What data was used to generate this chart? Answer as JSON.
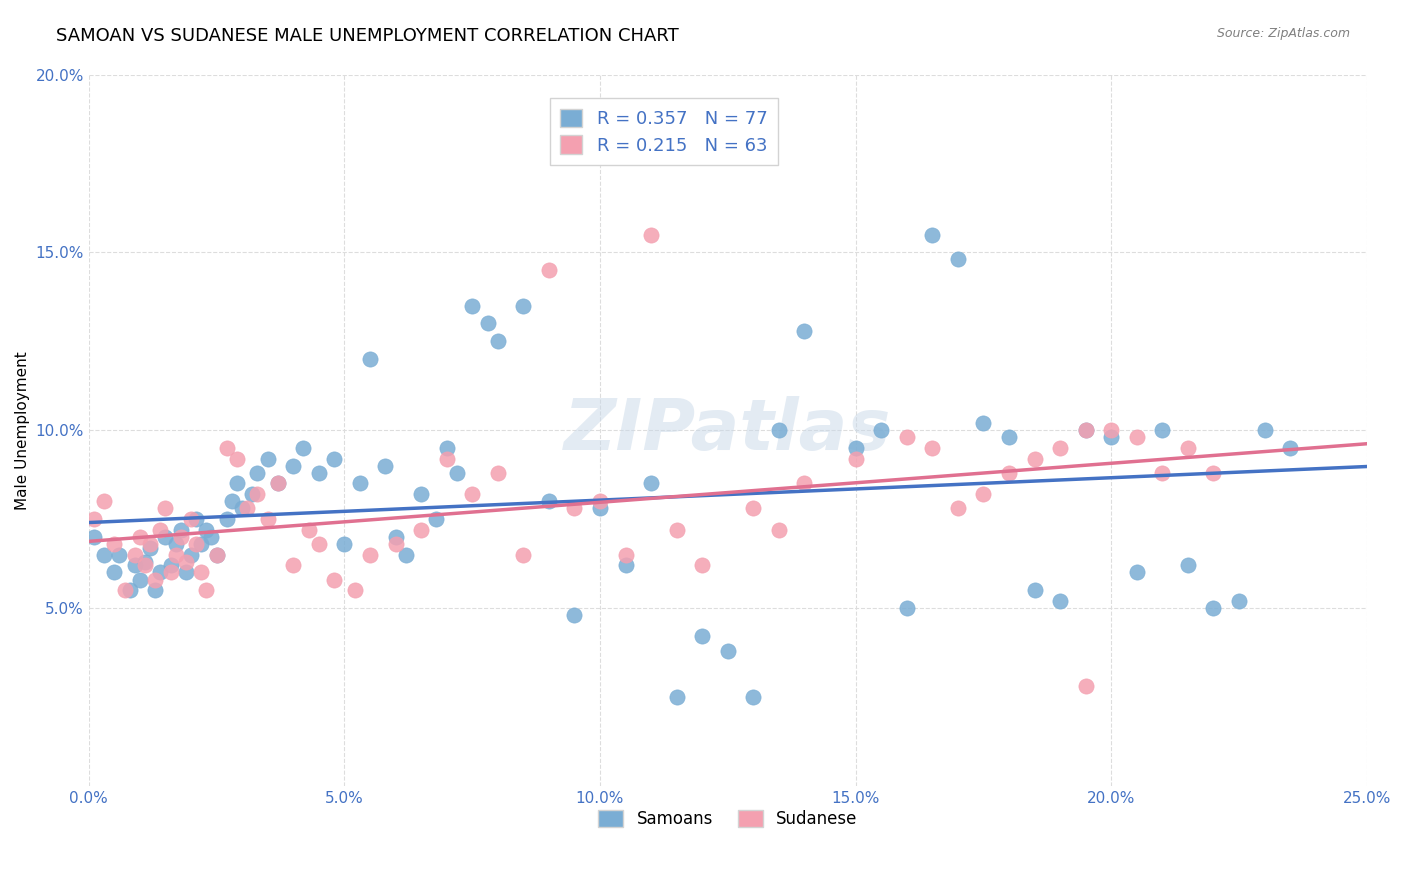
{
  "title": "SAMOAN VS SUDANESE MALE UNEMPLOYMENT CORRELATION CHART",
  "source": "Source: ZipAtlas.com",
  "xlabel": "",
  "ylabel": "Male Unemployment",
  "xlim": [
    0.0,
    0.25
  ],
  "ylim": [
    0.0,
    0.2
  ],
  "xticks": [
    0.0,
    0.05,
    0.1,
    0.15,
    0.2,
    0.25
  ],
  "xticklabels": [
    "0.0%",
    "5.0%",
    "10.0%",
    "15.0%",
    "20.0%",
    "25.0%"
  ],
  "yticks": [
    0.05,
    0.1,
    0.15,
    0.2
  ],
  "yticklabels": [
    "5.0%",
    "10.0%",
    "15.0%",
    "20.0%"
  ],
  "grid_color": "#dddddd",
  "background_color": "#ffffff",
  "title_fontsize": 13,
  "axis_label_fontsize": 11,
  "tick_fontsize": 11,
  "samoans_color": "#7aadd4",
  "sudanese_color": "#f4a0b0",
  "samoans_line_color": "#4472c4",
  "sudanese_line_color": "#e07090",
  "legend_R_N_color": "#4472c4",
  "samoans_R": 0.357,
  "samoans_N": 77,
  "sudanese_R": 0.215,
  "sudanese_N": 63,
  "watermark": "ZIPatlas",
  "samoans_x": [
    0.001,
    0.003,
    0.005,
    0.006,
    0.008,
    0.009,
    0.01,
    0.011,
    0.012,
    0.013,
    0.014,
    0.015,
    0.016,
    0.017,
    0.018,
    0.019,
    0.02,
    0.021,
    0.022,
    0.023,
    0.024,
    0.025,
    0.027,
    0.028,
    0.029,
    0.03,
    0.032,
    0.033,
    0.035,
    0.037,
    0.04,
    0.042,
    0.045,
    0.048,
    0.05,
    0.053,
    0.055,
    0.058,
    0.06,
    0.062,
    0.065,
    0.068,
    0.07,
    0.072,
    0.075,
    0.078,
    0.08,
    0.085,
    0.09,
    0.095,
    0.1,
    0.105,
    0.11,
    0.115,
    0.12,
    0.125,
    0.13,
    0.135,
    0.14,
    0.15,
    0.155,
    0.16,
    0.165,
    0.17,
    0.175,
    0.18,
    0.185,
    0.19,
    0.195,
    0.2,
    0.205,
    0.21,
    0.215,
    0.22,
    0.225,
    0.23,
    0.235
  ],
  "samoans_y": [
    0.07,
    0.065,
    0.06,
    0.065,
    0.055,
    0.062,
    0.058,
    0.063,
    0.067,
    0.055,
    0.06,
    0.07,
    0.062,
    0.068,
    0.072,
    0.06,
    0.065,
    0.075,
    0.068,
    0.072,
    0.07,
    0.065,
    0.075,
    0.08,
    0.085,
    0.078,
    0.082,
    0.088,
    0.092,
    0.085,
    0.09,
    0.095,
    0.088,
    0.092,
    0.068,
    0.085,
    0.12,
    0.09,
    0.07,
    0.065,
    0.082,
    0.075,
    0.095,
    0.088,
    0.135,
    0.13,
    0.125,
    0.135,
    0.08,
    0.048,
    0.078,
    0.062,
    0.085,
    0.025,
    0.042,
    0.038,
    0.025,
    0.1,
    0.128,
    0.095,
    0.1,
    0.05,
    0.155,
    0.148,
    0.102,
    0.098,
    0.055,
    0.052,
    0.1,
    0.098,
    0.06,
    0.1,
    0.062,
    0.05,
    0.052,
    0.1,
    0.095
  ],
  "sudanese_x": [
    0.001,
    0.003,
    0.005,
    0.007,
    0.009,
    0.01,
    0.011,
    0.012,
    0.013,
    0.014,
    0.015,
    0.016,
    0.017,
    0.018,
    0.019,
    0.02,
    0.021,
    0.022,
    0.023,
    0.025,
    0.027,
    0.029,
    0.031,
    0.033,
    0.035,
    0.037,
    0.04,
    0.043,
    0.045,
    0.048,
    0.052,
    0.055,
    0.06,
    0.065,
    0.07,
    0.075,
    0.08,
    0.085,
    0.09,
    0.095,
    0.1,
    0.105,
    0.11,
    0.115,
    0.12,
    0.13,
    0.135,
    0.14,
    0.15,
    0.16,
    0.165,
    0.17,
    0.175,
    0.18,
    0.185,
    0.19,
    0.195,
    0.2,
    0.205,
    0.21,
    0.215,
    0.22,
    0.195
  ],
  "sudanese_y": [
    0.075,
    0.08,
    0.068,
    0.055,
    0.065,
    0.07,
    0.062,
    0.068,
    0.058,
    0.072,
    0.078,
    0.06,
    0.065,
    0.07,
    0.063,
    0.075,
    0.068,
    0.06,
    0.055,
    0.065,
    0.095,
    0.092,
    0.078,
    0.082,
    0.075,
    0.085,
    0.062,
    0.072,
    0.068,
    0.058,
    0.055,
    0.065,
    0.068,
    0.072,
    0.092,
    0.082,
    0.088,
    0.065,
    0.145,
    0.078,
    0.08,
    0.065,
    0.155,
    0.072,
    0.062,
    0.078,
    0.072,
    0.085,
    0.092,
    0.098,
    0.095,
    0.078,
    0.082,
    0.088,
    0.092,
    0.095,
    0.1,
    0.1,
    0.098,
    0.088,
    0.095,
    0.088,
    0.028
  ]
}
